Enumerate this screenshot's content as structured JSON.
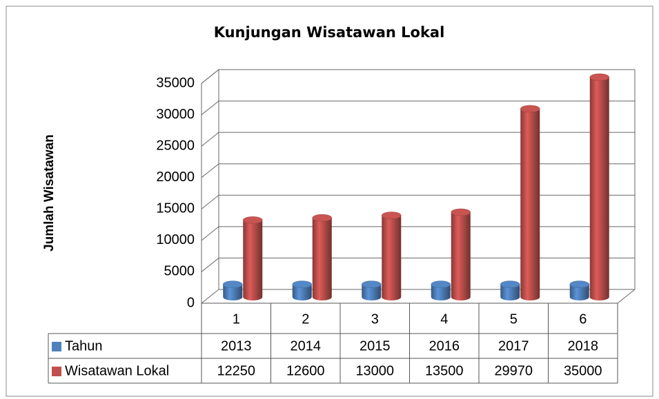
{
  "chart_data": {
    "type": "cylinder3d",
    "title": "Kunjungan Wisatawan Lokal",
    "y_label": "Jumlah Wisatawan",
    "categories": [
      "1",
      "2",
      "3",
      "4",
      "5",
      "6"
    ],
    "series": [
      {
        "name": "Tahun",
        "color": "#4f81bd",
        "values": [
          2013,
          2014,
          2015,
          2016,
          2017,
          2018
        ]
      },
      {
        "name": "Wisatawan Lokal",
        "color": "#c0504d",
        "values": [
          12250,
          12600,
          13000,
          13500,
          29970,
          35000
        ]
      }
    ],
    "ylim": [
      0,
      35000
    ],
    "yticks": [
      0,
      5000,
      10000,
      15000,
      20000,
      25000,
      30000,
      35000
    ],
    "grid": true,
    "data_table": true
  }
}
